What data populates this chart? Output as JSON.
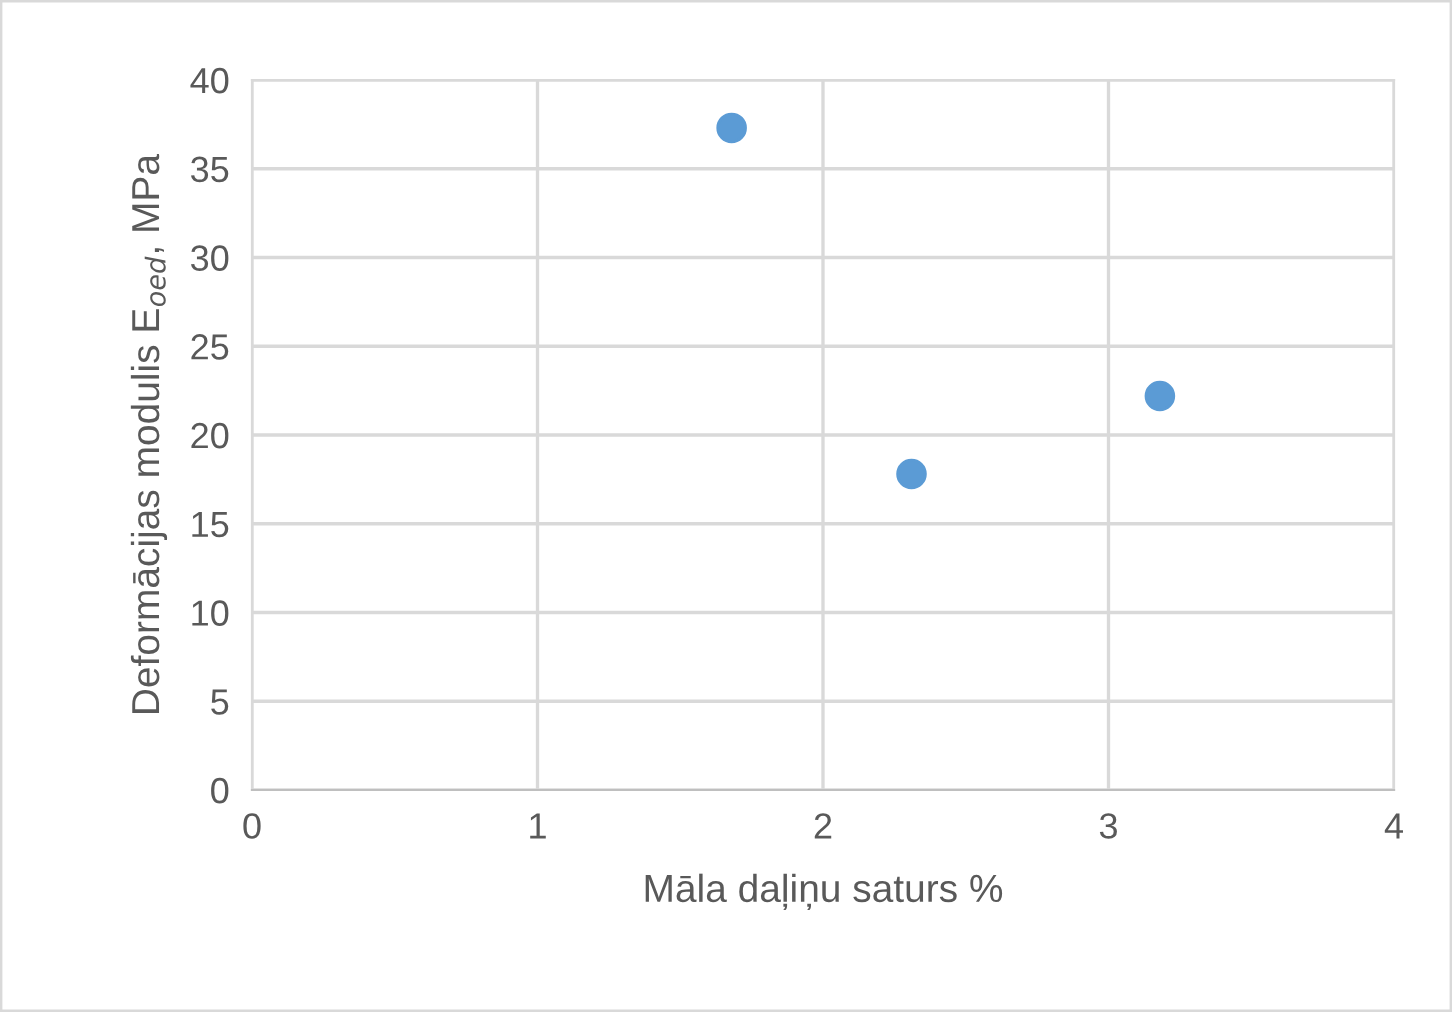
{
  "chart_data": {
    "type": "scatter",
    "xlabel": "Māla daļiņu saturs %",
    "ylabel": "Deformācijas modulis E$_{oed}$, MPa",
    "x": [
      1.68,
      2.31,
      3.18
    ],
    "series": [
      {
        "color": "#5b9bd5",
        "values": [
          37.3,
          17.8,
          22.2
        ]
      }
    ],
    "xlim": [
      0,
      4
    ],
    "xticks": [
      0,
      1,
      2,
      3,
      4
    ],
    "ylim": [
      0,
      40
    ],
    "yticks": [
      0,
      5,
      10,
      15,
      20,
      25,
      30,
      35,
      40
    ],
    "grid": true,
    "marker": "circle"
  }
}
